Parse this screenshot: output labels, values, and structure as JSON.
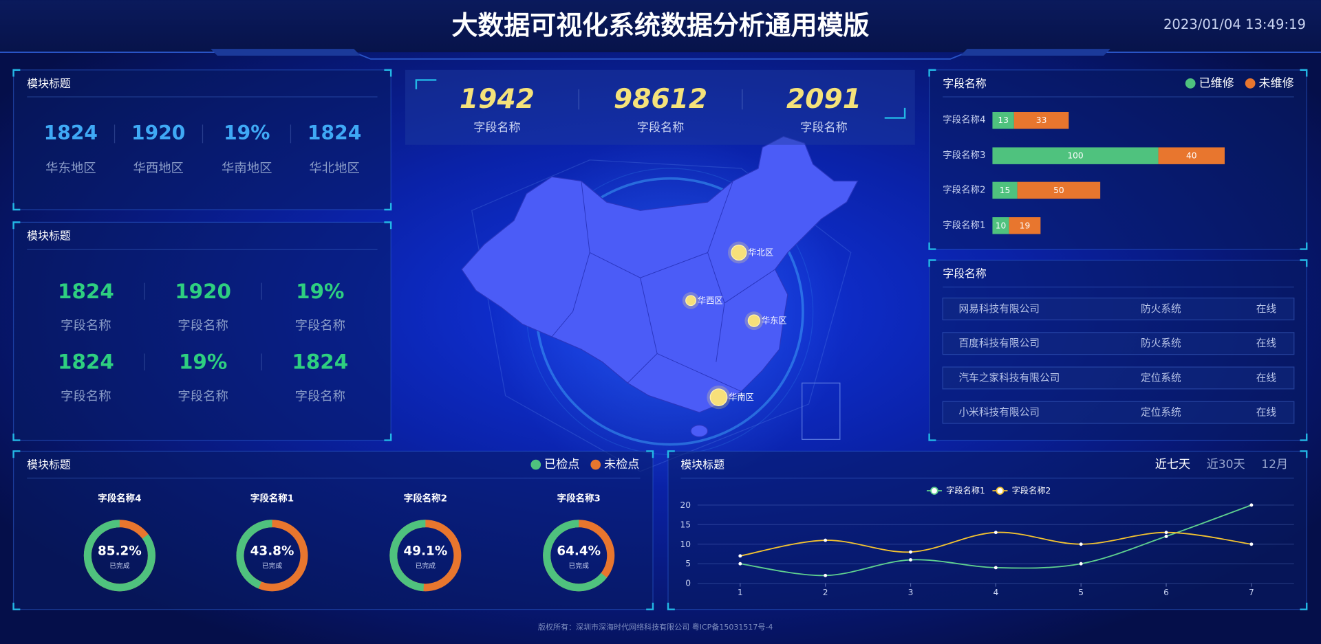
{
  "header": {
    "title": "大数据可视化系统数据分析通用模版",
    "datetime": "2023/01/04 13:49:19"
  },
  "region_panel": {
    "title": "模块标题",
    "items": [
      {
        "value": 1824,
        "label": "华东地区"
      },
      {
        "value": 1920,
        "label": "华西地区"
      },
      {
        "value": "19%",
        "label": "华南地区"
      },
      {
        "value": 1824,
        "label": "华北地区"
      }
    ]
  },
  "field_panel": {
    "title": "模块标题",
    "items": [
      {
        "value": 1824,
        "label": "字段名称"
      },
      {
        "value": 1920,
        "label": "字段名称"
      },
      {
        "value": "19%",
        "label": "字段名称"
      },
      {
        "value": 1824,
        "label": "字段名称"
      },
      {
        "value": "19%",
        "label": "字段名称"
      },
      {
        "value": 1824,
        "label": "字段名称"
      }
    ]
  },
  "map": {
    "stats": [
      {
        "value": 1942,
        "label": "字段名称"
      },
      {
        "value": 98612,
        "label": "字段名称"
      },
      {
        "value": 2091,
        "label": "字段名称"
      }
    ],
    "regions": [
      "华北区",
      "华西区",
      "华东区",
      "华南区"
    ]
  },
  "chart_data": [
    {
      "type": "bar",
      "orientation": "horizontal",
      "stacked": true,
      "title": "字段名称",
      "legend": "top-right",
      "categories": [
        "字段名称4",
        "字段名称3",
        "字段名称2",
        "字段名称1"
      ],
      "series": [
        {
          "name": "已维修",
          "color": "#4fc27e",
          "values": [
            13,
            100,
            15,
            10
          ]
        },
        {
          "name": "未维修",
          "color": "#e8762e",
          "values": [
            33,
            40,
            50,
            19
          ]
        }
      ]
    },
    {
      "type": "donut",
      "title": "模块标题",
      "legend": "top-right",
      "center_caption": "已完成",
      "categories": [
        "字段名称4",
        "字段名称1",
        "字段名称2",
        "字段名称3"
      ],
      "series": [
        {
          "name": "已检点",
          "color": "#4fc27e",
          "values": [
            85.2,
            43.8,
            49.1,
            64.4
          ],
          "value_labels": [
            "85.2%",
            "43.8%",
            "49.1%",
            "64.4%"
          ]
        },
        {
          "name": "未检点",
          "color": "#e8762e"
        }
      ]
    },
    {
      "type": "line",
      "title": "模块标题",
      "tabs": [
        "近七天",
        "近30天",
        "12月"
      ],
      "legend": "top",
      "grid": true,
      "x": [
        1,
        2,
        3,
        4,
        5,
        6,
        7
      ],
      "xlim": [
        0.5,
        7.5
      ],
      "xticks": [
        1,
        2,
        3,
        4,
        5,
        6,
        7
      ],
      "ylim": [
        0,
        20
      ],
      "yticks": [
        0,
        5,
        10,
        15,
        20
      ],
      "series": [
        {
          "name": "字段名称1",
          "color": "#5fd08f",
          "values": [
            5,
            2,
            6,
            4,
            5,
            12,
            20
          ]
        },
        {
          "name": "字段名称2",
          "color": "#f2c230",
          "values": [
            7,
            11,
            8,
            13,
            10,
            13,
            10
          ]
        }
      ]
    }
  ],
  "table": {
    "title": "字段名称",
    "rows": [
      [
        "网易科技有限公司",
        "防火系统",
        "在线"
      ],
      [
        "百度科技有限公司",
        "防火系统",
        "在线"
      ],
      [
        "汽车之家科技有限公司",
        "定位系统",
        "在线"
      ],
      [
        "小米科技有限公司",
        "定位系统",
        "在线"
      ]
    ]
  },
  "footer": "版权所有：深圳市深海时代网络科技有限公司 粤ICP备15031517号-4"
}
